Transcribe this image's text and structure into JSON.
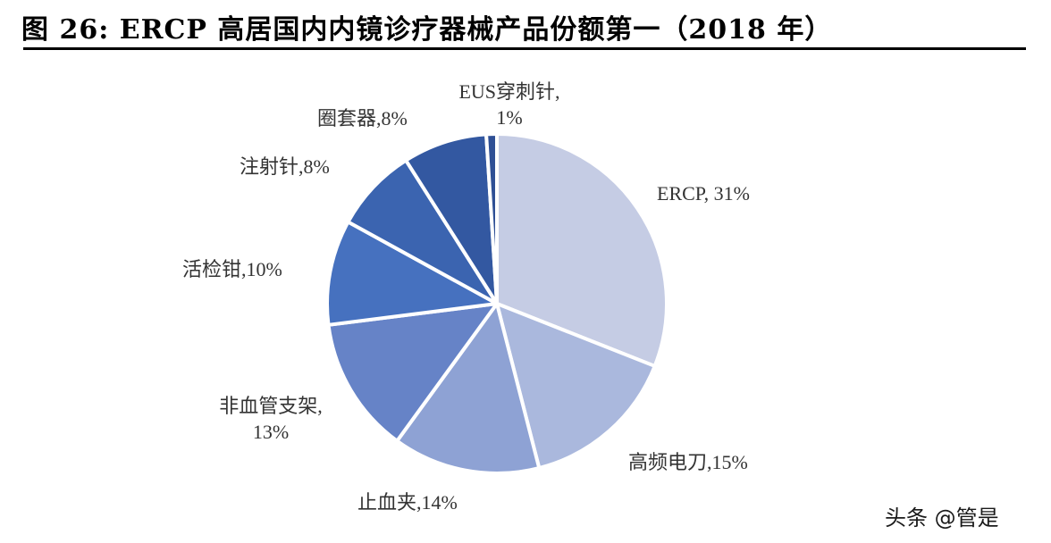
{
  "title": "图 26:  ERCP 高居国内内镜诊疗器械产品份额第一（2018 年）",
  "watermark": "头条 @管是",
  "chart_data": {
    "type": "pie",
    "title": "ERCP 高居国内内镜诊疗器械产品份额第一（2018 年）",
    "figure_number": "图 26",
    "start_angle": "12 o'clock",
    "direction": "clockwise",
    "categories": [
      "ERCP",
      "高频电刀",
      "止血夹",
      "非血管支架",
      "活检钳",
      "注射针",
      "圈套器",
      "EUS穿刺针"
    ],
    "values": [
      31,
      15,
      14,
      13,
      10,
      8,
      8,
      1
    ],
    "unit": "%",
    "colors": [
      "#c5cce4",
      "#aab8dd",
      "#8ea2d4",
      "#6683c7",
      "#4671bf",
      "#3b64b0",
      "#3358a1",
      "#2e4f95"
    ],
    "labels": [
      {
        "line1": "ERCP, 31%"
      },
      {
        "line1": "高频电刀,15%"
      },
      {
        "line1": "止血夹,14%"
      },
      {
        "line1": "非血管支架,",
        "line2": "13%"
      },
      {
        "line1": "活检钳,10%"
      },
      {
        "line1": "注射针,8%"
      },
      {
        "line1": "圈套器,8%"
      },
      {
        "line1": "EUS穿刺针,",
        "line2": "1%"
      }
    ],
    "legend": "none (inline labels)"
  }
}
